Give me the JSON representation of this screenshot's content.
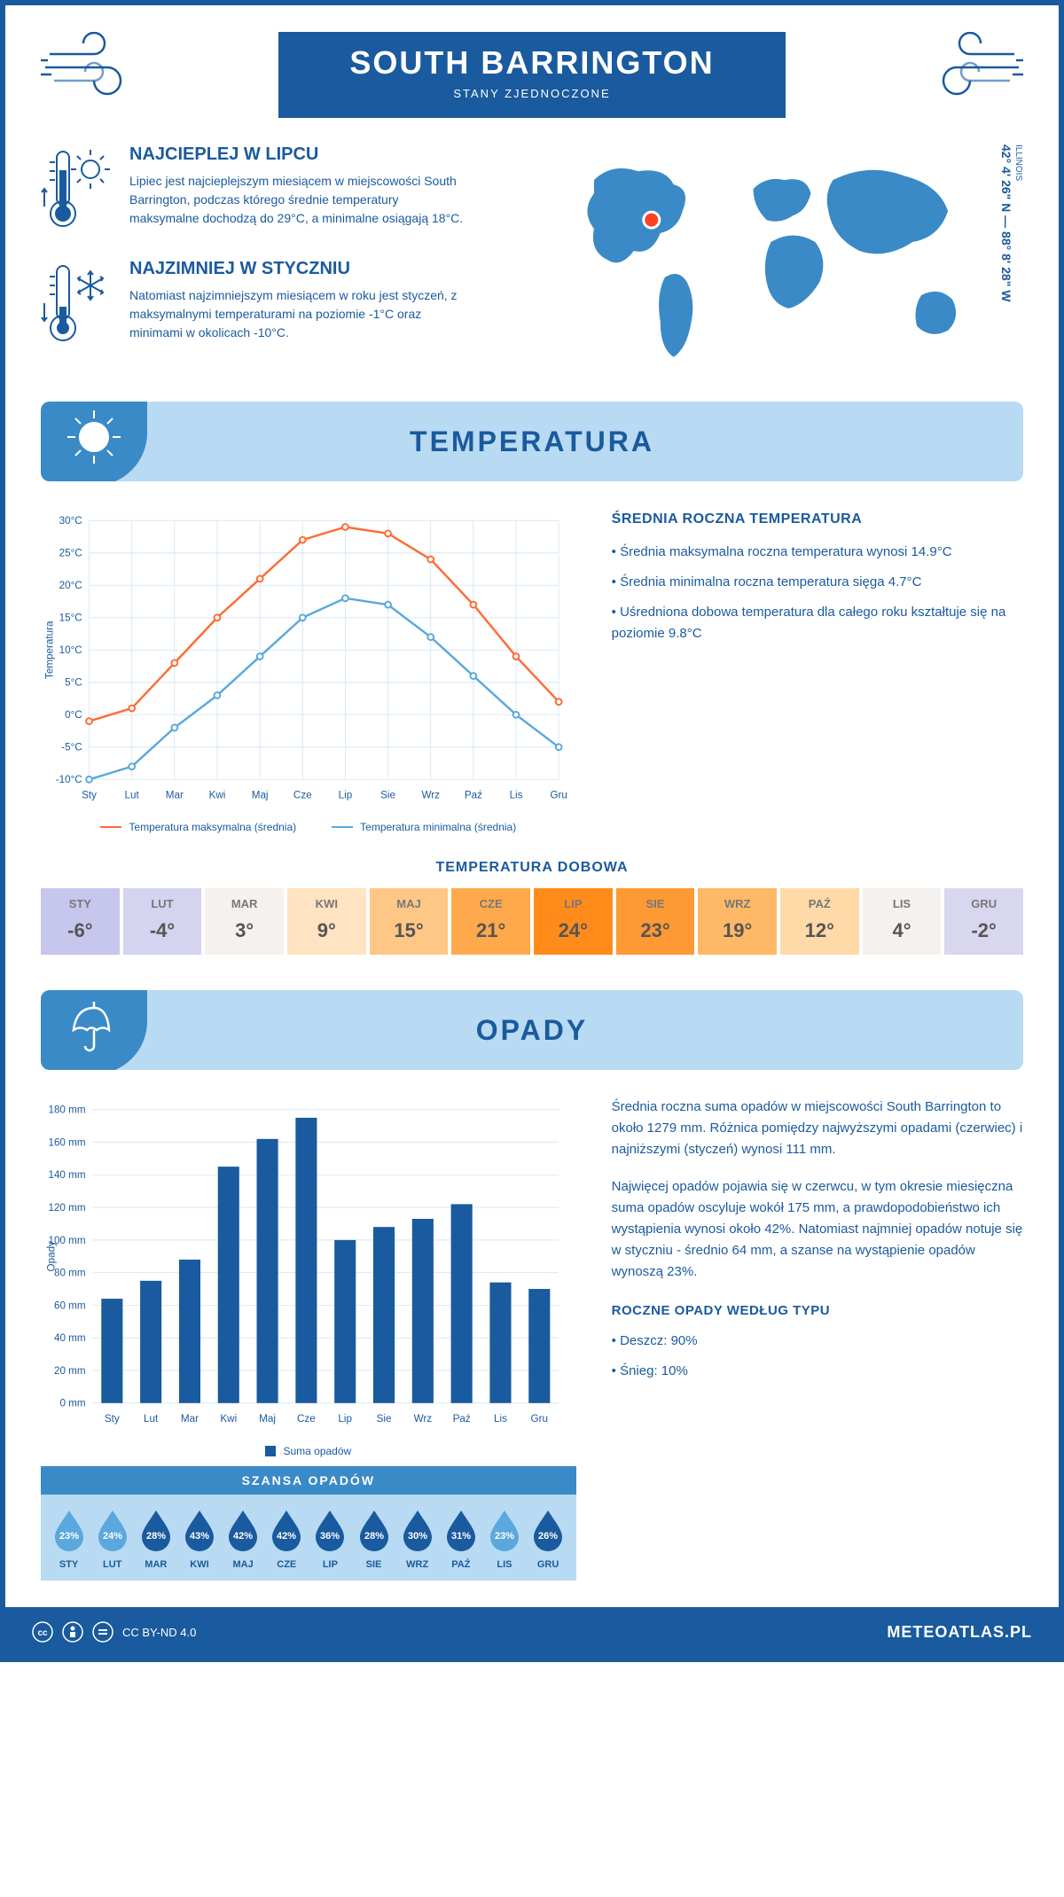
{
  "header": {
    "title": "SOUTH BARRINGTON",
    "subtitle": "STANY ZJEDNOCZONE",
    "region": "ILLINOIS",
    "coords": "42° 4' 26\" N — 88° 8' 28\" W"
  },
  "hot": {
    "title": "NAJCIEPLEJ W LIPCU",
    "text": "Lipiec jest najcieplejszym miesiącem w miejscowości South Barrington, podczas którego średnie temperatury maksymalne dochodzą do 29°C, a minimalne osiągają 18°C."
  },
  "cold": {
    "title": "NAJZIMNIEJ W STYCZNIU",
    "text": "Natomiast najzimniejszym miesiącem w roku jest styczeń, z maksymalnymi temperaturami na poziomie -1°C oraz minimami w okolicach -10°C."
  },
  "sections": {
    "temp": "TEMPERATURA",
    "precip": "OPADY"
  },
  "temp_chart": {
    "type": "line",
    "months": [
      "Sty",
      "Lut",
      "Mar",
      "Kwi",
      "Maj",
      "Cze",
      "Lip",
      "Sie",
      "Wrz",
      "Paź",
      "Lis",
      "Gru"
    ],
    "max_series": [
      -1,
      1,
      8,
      15,
      21,
      27,
      29,
      28,
      24,
      17,
      9,
      2
    ],
    "min_series": [
      -10,
      -8,
      -2,
      3,
      9,
      15,
      18,
      17,
      12,
      6,
      0,
      -5
    ],
    "ylabel": "Temperatura",
    "ylim": [
      -10,
      30
    ],
    "ytick_step": 5,
    "ytick_labels": [
      "-10°C",
      "-5°C",
      "0°C",
      "5°C",
      "10°C",
      "15°C",
      "20°C",
      "25°C",
      "30°C"
    ],
    "max_color": "#ff6b35",
    "min_color": "#5aa8dd",
    "grid_color": "#d8e8f4",
    "legend_max": "Temperatura maksymalna (średnia)",
    "legend_min": "Temperatura minimalna (średnia)"
  },
  "temp_stats": {
    "title": "ŚREDNIA ROCZNA TEMPERATURA",
    "b1": "• Średnia maksymalna roczna temperatura wynosi 14.9°C",
    "b2": "• Średnia minimalna roczna temperatura sięga 4.7°C",
    "b3": "• Uśredniona dobowa temperatura dla całego roku kształtuje się na poziomie 9.8°C"
  },
  "daily": {
    "title": "TEMPERATURA DOBOWA",
    "months": [
      "STY",
      "LUT",
      "MAR",
      "KWI",
      "MAJ",
      "CZE",
      "LIP",
      "SIE",
      "WRZ",
      "PAŹ",
      "LIS",
      "GRU"
    ],
    "values": [
      "-6°",
      "-4°",
      "3°",
      "9°",
      "15°",
      "21°",
      "24°",
      "23°",
      "19°",
      "12°",
      "4°",
      "-2°"
    ],
    "bg_colors": [
      "#c7c6ed",
      "#d4d3f0",
      "#f5f1ee",
      "#ffe3c2",
      "#ffc786",
      "#ffa94d",
      "#ff8c1a",
      "#ff9933",
      "#ffb866",
      "#ffd9a8",
      "#f5f1ee",
      "#d8d7ef"
    ]
  },
  "precip_chart": {
    "type": "bar",
    "months": [
      "Sty",
      "Lut",
      "Mar",
      "Kwi",
      "Maj",
      "Cze",
      "Lip",
      "Sie",
      "Wrz",
      "Paź",
      "Lis",
      "Gru"
    ],
    "values": [
      64,
      75,
      88,
      145,
      162,
      175,
      100,
      108,
      113,
      122,
      74,
      70
    ],
    "ylabel": "Opady",
    "ylim": [
      0,
      180
    ],
    "ytick_step": 20,
    "ytick_labels": [
      "0 mm",
      "20 mm",
      "40 mm",
      "60 mm",
      "80 mm",
      "100 mm",
      "120 mm",
      "140 mm",
      "160 mm",
      "180 mm"
    ],
    "bar_color": "#1a5a9e",
    "grid_color": "#d8e8f4",
    "legend": "Suma opadów"
  },
  "precip_text": {
    "p1": "Średnia roczna suma opadów w miejscowości South Barrington to około 1279 mm. Różnica pomiędzy najwyższymi opadami (czerwiec) i najniższymi (styczeń) wynosi 111 mm.",
    "p2": "Najwięcej opadów pojawia się w czerwcu, w tym okresie miesięczna suma opadów oscyluje wokół 175 mm, a prawdopodobieństwo ich wystąpienia wynosi około 42%. Natomiast najmniej opadów notuje się w styczniu - średnio 64 mm, a szanse na wystąpienie opadów wynoszą 23%."
  },
  "chance": {
    "title": "SZANSA OPADÓW",
    "months": [
      "STY",
      "LUT",
      "MAR",
      "KWI",
      "MAJ",
      "CZE",
      "LIP",
      "SIE",
      "WRZ",
      "PAŹ",
      "LIS",
      "GRU"
    ],
    "values": [
      "23%",
      "24%",
      "28%",
      "43%",
      "42%",
      "42%",
      "36%",
      "28%",
      "30%",
      "31%",
      "23%",
      "26%"
    ],
    "drop_dark": "#1a5a9e",
    "drop_light": "#5aa8dd",
    "is_dark": [
      false,
      false,
      true,
      true,
      true,
      true,
      true,
      true,
      true,
      true,
      false,
      true
    ]
  },
  "annual_type": {
    "title": "ROCZNE OPADY WEDŁUG TYPU",
    "rain": "• Deszcz: 90%",
    "snow": "• Śnieg: 10%"
  },
  "footer": {
    "license": "CC BY-ND 4.0",
    "site": "METEOATLAS.PL"
  },
  "colors": {
    "primary": "#1a5a9e",
    "light": "#b8daf2",
    "mid": "#3a8ac7"
  }
}
